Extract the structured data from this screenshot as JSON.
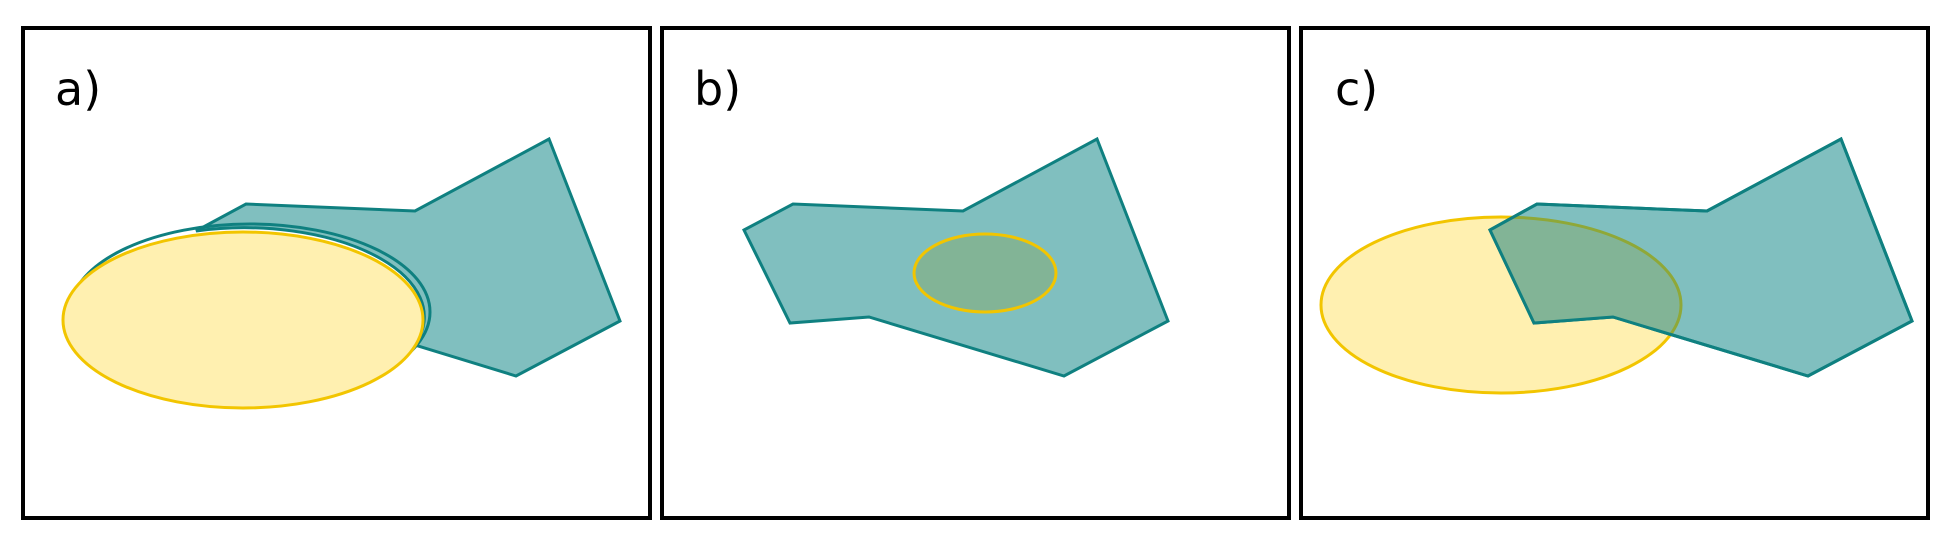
{
  "panels": [
    {
      "id": "a",
      "label": "a)"
    },
    {
      "id": "b",
      "label": "b)"
    },
    {
      "id": "c",
      "label": "c)"
    }
  ],
  "colors": {
    "polygon_fill": "#80BFBF",
    "polygon_stroke": "#0F8080",
    "ellipse_fill": "#FFF0B0",
    "ellipse_stroke": "#F2C500",
    "overlap_fill": "#82B496",
    "overlap_stroke": "#8FA838",
    "frame_stroke": "#000000",
    "background": "#ffffff"
  }
}
